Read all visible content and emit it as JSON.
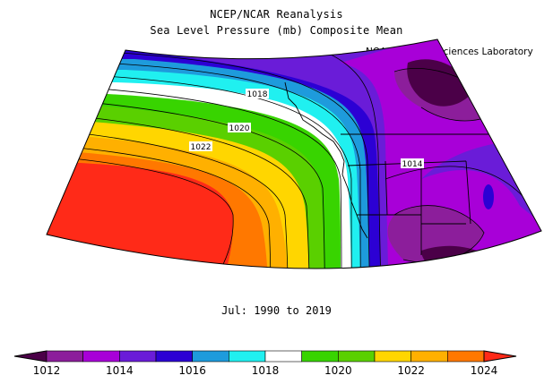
{
  "title_line1": "NCEP/NCAR Reanalysis",
  "title_line2": "Sea Level Pressure (mb) Composite Mean",
  "credit": "NOAA Physical Sciences Laboratory",
  "period": "Jul: 1990 to 2019",
  "contour_labels": [
    {
      "id": "c1018",
      "text": "1018"
    },
    {
      "id": "c1020",
      "text": "1020"
    },
    {
      "id": "c1022",
      "text": "1022"
    },
    {
      "id": "c1014",
      "text": "1014"
    }
  ],
  "colorbar": {
    "min": 1011,
    "max": 1025,
    "step": 1,
    "tick_labels": [
      "1012",
      "1014",
      "1016",
      "1018",
      "1020",
      "1022",
      "1024"
    ],
    "colors": [
      "#4b0048",
      "#8c1e9b",
      "#a800d8",
      "#6a1cd8",
      "#2c00d4",
      "#1e9bdc",
      "#20f0f0",
      "#ffffff",
      "#38d400",
      "#5ad000",
      "#ffd600",
      "#ffb000",
      "#ff7800",
      "#ff2a18"
    ]
  },
  "colors": {
    "ocean_high": "#ff2a18",
    "land_low": "#8c1e9b"
  }
}
